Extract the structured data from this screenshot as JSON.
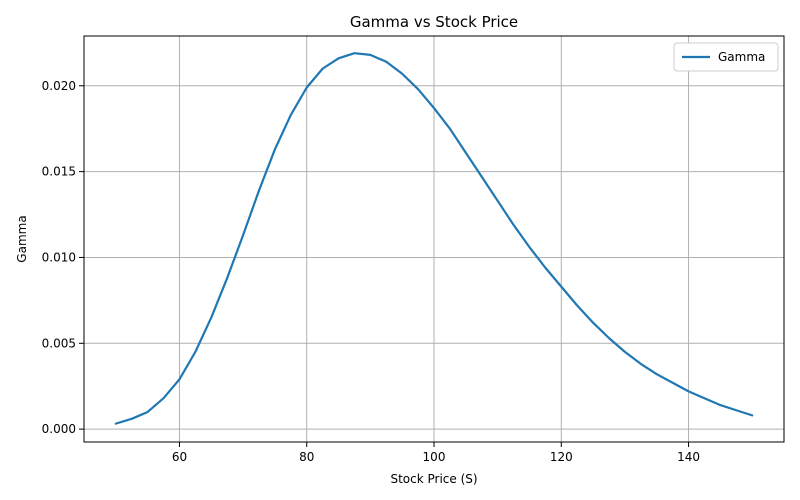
{
  "chart_data": {
    "type": "line",
    "title": "Gamma vs Stock Price",
    "xlabel": "Stock Price (S)",
    "ylabel": "Gamma",
    "xlim": [
      45,
      155
    ],
    "ylim": [
      -0.00075,
      0.0229
    ],
    "x_ticks": [
      60,
      80,
      100,
      120,
      140
    ],
    "x_tick_labels": [
      "60",
      "80",
      "100",
      "120",
      "140"
    ],
    "y_ticks": [
      0,
      0.005,
      0.01,
      0.015,
      0.02
    ],
    "y_tick_labels": [
      "0.000",
      "0.005",
      "0.010",
      "0.015",
      "0.020"
    ],
    "grid": true,
    "legend": {
      "position": "top-right",
      "entries": [
        "Gamma"
      ]
    },
    "series": [
      {
        "name": "Gamma",
        "color": "#1f77b4",
        "x": [
          50,
          52.5,
          55,
          57.5,
          60,
          62.5,
          65,
          67.5,
          70,
          72.5,
          75,
          77.5,
          80,
          82.5,
          85,
          87.5,
          90,
          92.5,
          95,
          97.5,
          100,
          102.5,
          105,
          107.5,
          110,
          112.5,
          115,
          117.5,
          120,
          122.5,
          125,
          127.5,
          130,
          132.5,
          135,
          137.5,
          140,
          142.5,
          145,
          147.5,
          150
        ],
        "y": [
          0.00032,
          0.0006,
          0.001,
          0.0018,
          0.0029,
          0.0045,
          0.0065,
          0.0088,
          0.0113,
          0.0139,
          0.0163,
          0.0183,
          0.0199,
          0.021,
          0.0216,
          0.0219,
          0.0218,
          0.0214,
          0.0207,
          0.0198,
          0.0187,
          0.0175,
          0.0161,
          0.0147,
          0.0133,
          0.0119,
          0.0106,
          0.0094,
          0.0083,
          0.0072,
          0.0062,
          0.0053,
          0.0045,
          0.0038,
          0.0032,
          0.0027,
          0.0022,
          0.0018,
          0.0014,
          0.0011,
          0.0008
        ]
      }
    ]
  }
}
